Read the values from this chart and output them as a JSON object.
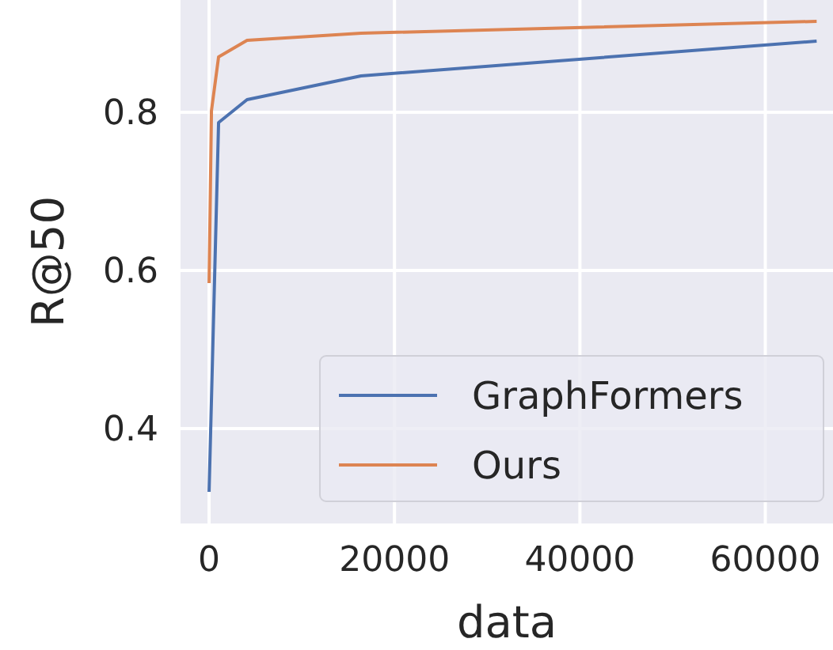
{
  "chart_data": {
    "type": "line",
    "xlabel": "data",
    "ylabel": "R@50",
    "xlim": [
      -3080,
      67300
    ],
    "xticks": [
      0,
      20000,
      40000,
      60000
    ],
    "ylim": [
      0.28,
      0.942
    ],
    "yticks": [
      0.4,
      0.6,
      0.8
    ],
    "grid": true,
    "legend": "bottom right",
    "series": [
      {
        "name": "GraphFormers",
        "color": "#4c72b0",
        "x": [
          0,
          1024,
          4096,
          16384,
          65536
        ],
        "values": [
          0.32,
          0.787,
          0.816,
          0.846,
          0.89
        ]
      },
      {
        "name": "Ours",
        "color": "#dd8452",
        "x": [
          0,
          256,
          1024,
          4096,
          16384,
          65536
        ],
        "values": [
          0.584,
          0.802,
          0.87,
          0.891,
          0.9,
          0.915
        ]
      }
    ]
  }
}
